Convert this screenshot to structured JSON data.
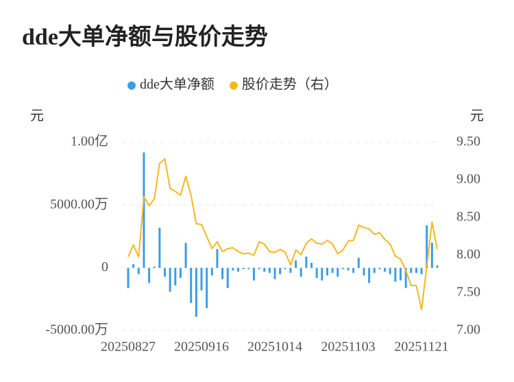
{
  "chart_data": {
    "type": "bar-line",
    "title": "dde大单净额与股价走势",
    "y_label": "元",
    "y2_label": "元",
    "categories": [
      "20250827",
      null,
      null,
      null,
      null,
      null,
      null,
      null,
      null,
      null,
      null,
      null,
      null,
      null,
      "20250916",
      null,
      null,
      null,
      null,
      null,
      null,
      null,
      null,
      null,
      null,
      null,
      null,
      null,
      "20251014",
      null,
      null,
      null,
      null,
      null,
      null,
      null,
      null,
      null,
      null,
      null,
      null,
      null,
      "20251103",
      null,
      null,
      null,
      null,
      null,
      null,
      null,
      null,
      null,
      null,
      null,
      null,
      null,
      "20251121",
      null,
      null,
      null
    ],
    "series": [
      {
        "name": "dde大单净额",
        "type": "bar",
        "axis": "y",
        "color": "#3a9de6",
        "values": [
          -16000000,
          3000000,
          -5000000,
          92000000,
          -12000000,
          1000000,
          32000000,
          -7000000,
          -19000000,
          -14000000,
          -8000000,
          20000000,
          -28000000,
          -39000000,
          -18000000,
          -32000000,
          -6000000,
          15000000,
          -9000000,
          -16000000,
          -2000000,
          -3000000,
          -1000000,
          -1000000,
          -10000000,
          -1000000,
          -3000000,
          -4000000,
          -9000000,
          -5000000,
          -1000000,
          -4000000,
          6000000,
          -7000000,
          9000000,
          4000000,
          -8000000,
          -10000000,
          -6000000,
          -4000000,
          -7000000,
          -1000000,
          -2000000,
          -4000000,
          8000000,
          -6000000,
          -12000000,
          -4000000,
          -1000000,
          -3000000,
          -5000000,
          -11000000,
          -10000000,
          -16000000,
          -4000000,
          -4000000,
          -5000000,
          34000000,
          20000000,
          2000000
        ]
      },
      {
        "name": "股价走势（右）",
        "type": "line",
        "axis": "y2",
        "color": "#f5b81c",
        "values": [
          7.98,
          8.14,
          7.98,
          8.78,
          8.66,
          8.75,
          9.22,
          9.28,
          8.89,
          8.85,
          8.8,
          9.05,
          8.8,
          8.42,
          8.41,
          8.25,
          8.09,
          8.18,
          8.05,
          8.09,
          8.1,
          8.05,
          8.02,
          8.03,
          8.0,
          8.18,
          8.15,
          8.05,
          8.04,
          8.08,
          8.04,
          7.87,
          8.07,
          8.01,
          8.16,
          8.22,
          8.16,
          8.15,
          8.2,
          8.15,
          8.02,
          8.07,
          8.19,
          8.2,
          8.4,
          8.37,
          8.35,
          8.28,
          8.3,
          8.21,
          8.15,
          7.99,
          7.95,
          7.8,
          7.6,
          7.6,
          7.28,
          7.85,
          8.44,
          8.08
        ]
      }
    ],
    "ylim": [
      -50000000,
      100000000
    ],
    "yticks": [
      {
        "value": 100000000,
        "label": "1.00亿"
      },
      {
        "value": 50000000,
        "label": "5000.00万"
      },
      0,
      {
        "value": -50000000,
        "label": "-5000.00万"
      }
    ],
    "y2lim": [
      7,
      9.5
    ],
    "y2ticks": [
      {
        "value": 9.5,
        "label": "9.50"
      },
      {
        "value": 9,
        "label": "9.00"
      },
      {
        "value": 8.5,
        "label": "8.50"
      },
      {
        "value": 8,
        "label": "8.00"
      },
      {
        "value": 7.5,
        "label": "7.50"
      },
      {
        "value": 7,
        "label": "7.00"
      }
    ],
    "grid": true
  }
}
